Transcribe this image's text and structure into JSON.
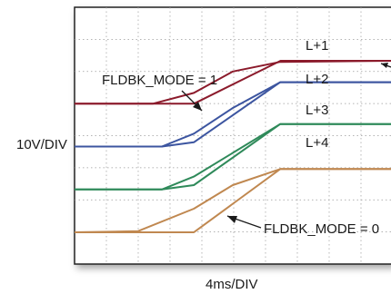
{
  "chart_data": {
    "type": "line",
    "x_unit_label": "4ms/DIV",
    "y_unit_label": "10V/DIV",
    "grid": true,
    "xlim": [
      0,
      10
    ],
    "ylim": [
      0,
      8
    ],
    "annotations": {
      "mode1": "FLDBK_MODE = 1",
      "mode0": "FLDBK_MODE = 0"
    },
    "series": [
      {
        "name": "L+1",
        "color": "#8b1a2b",
        "traces": [
          [
            [
              0,
              6.0
            ],
            [
              3.77,
              6.0
            ],
            [
              6.51,
              8.0
            ],
            [
              10,
              8.0
            ]
          ],
          [
            [
              0,
              6.0
            ],
            [
              2.47,
              6.0
            ],
            [
              3.77,
              6.5
            ],
            [
              5.0,
              7.5
            ],
            [
              6.5,
              7.95
            ],
            [
              10,
              8.0
            ]
          ]
        ]
      },
      {
        "name": "L+2",
        "color": "#3c55a0",
        "traces": [
          [
            [
              0,
              4.0
            ],
            [
              2.76,
              4.0
            ],
            [
              3.77,
              4.2
            ],
            [
              6.5,
              7.0
            ],
            [
              10,
              7.0
            ]
          ],
          [
            [
              0,
              4.0
            ],
            [
              2.76,
              4.0
            ],
            [
              3.77,
              4.6
            ],
            [
              5.0,
              5.8
            ],
            [
              6.5,
              7.0
            ],
            [
              10,
              7.0
            ]
          ]
        ]
      },
      {
        "name": "L+3",
        "color": "#2f8a5a",
        "traces": [
          [
            [
              0,
              2.0
            ],
            [
              2.76,
              2.0
            ],
            [
              3.77,
              2.6
            ],
            [
              6.5,
              5.05
            ],
            [
              10,
              5.05
            ]
          ],
          [
            [
              0,
              2.0
            ],
            [
              2.76,
              2.0
            ],
            [
              3.77,
              2.2
            ],
            [
              6.5,
              5.05
            ],
            [
              10,
              5.05
            ]
          ]
        ]
      },
      {
        "name": "L+4",
        "color": "#c08850",
        "traces": [
          [
            [
              0,
              0.0
            ],
            [
              2.76,
              0.0
            ],
            [
              3.77,
              0.0
            ],
            [
              6.5,
              2.95
            ],
            [
              10,
              2.95
            ]
          ],
          [
            [
              0,
              0.0
            ],
            [
              2.0,
              0.05
            ],
            [
              3.77,
              1.1
            ],
            [
              5.0,
              2.2
            ],
            [
              6.5,
              2.95
            ],
            [
              10,
              2.95
            ]
          ]
        ]
      }
    ]
  }
}
